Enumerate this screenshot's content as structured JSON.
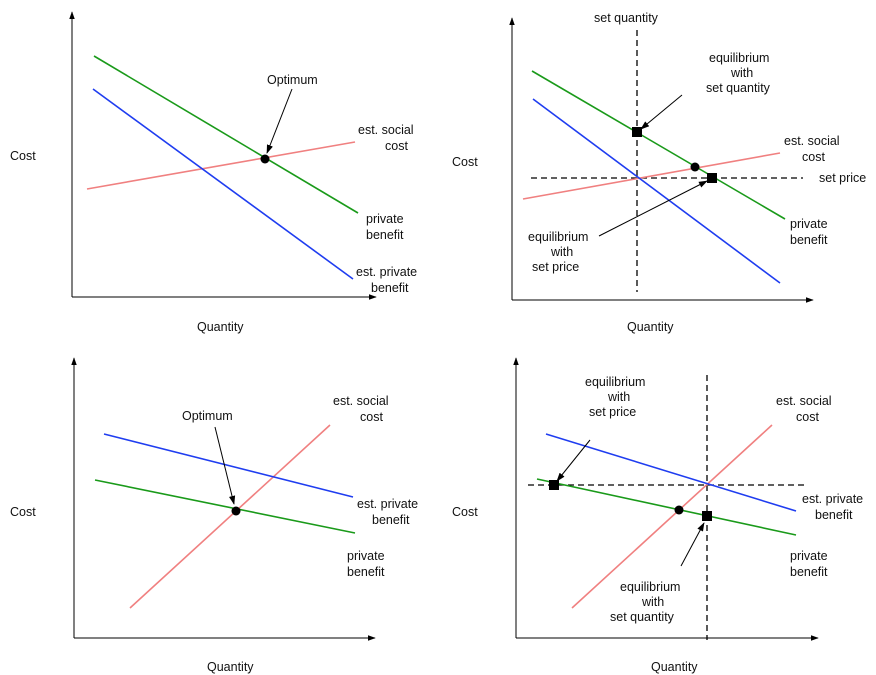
{
  "colors": {
    "social_cost": "#f08080",
    "private_benefit": "#1a9a1a",
    "est_private_benefit": "#1f3df0",
    "axis": "#000000",
    "policy_line": "#000000"
  },
  "panels": [
    {
      "axis_y_label": "Cost",
      "axis_x_label": "Quantity",
      "labels": {
        "optimum": "Optimum",
        "social_cost": [
          "est. social",
          "cost"
        ],
        "private_benefit": [
          "private",
          "benefit"
        ],
        "est_private_benefit": [
          "est. private",
          "benefit"
        ]
      }
    },
    {
      "axis_y_label": "Cost",
      "axis_x_label": "Quantity",
      "labels": {
        "set_quantity": "set quantity",
        "set_price": "set price",
        "eq_set_quantity": [
          "equilibrium",
          "with",
          "set quantity"
        ],
        "eq_set_price": [
          "equilibrium",
          "with",
          "set price"
        ],
        "social_cost": [
          "est. social",
          "cost"
        ],
        "private_benefit": [
          "private",
          "benefit"
        ]
      }
    },
    {
      "axis_y_label": "Cost",
      "axis_x_label": "Quantity",
      "labels": {
        "optimum": "Optimum",
        "social_cost": [
          "est. social",
          "cost"
        ],
        "est_private_benefit": [
          "est. private",
          "benefit"
        ],
        "private_benefit": [
          "private",
          "benefit"
        ]
      }
    },
    {
      "axis_y_label": "Cost",
      "axis_x_label": "Quantity",
      "labels": {
        "eq_set_price": [
          "equilibrium",
          "with",
          "set price"
        ],
        "eq_set_quantity": [
          "equilibrium",
          "with",
          "set quantity"
        ],
        "social_cost": [
          "est. social",
          "cost"
        ],
        "est_private_benefit": [
          "est. private",
          "benefit"
        ],
        "private_benefit": [
          "private",
          "benefit"
        ]
      }
    }
  ]
}
